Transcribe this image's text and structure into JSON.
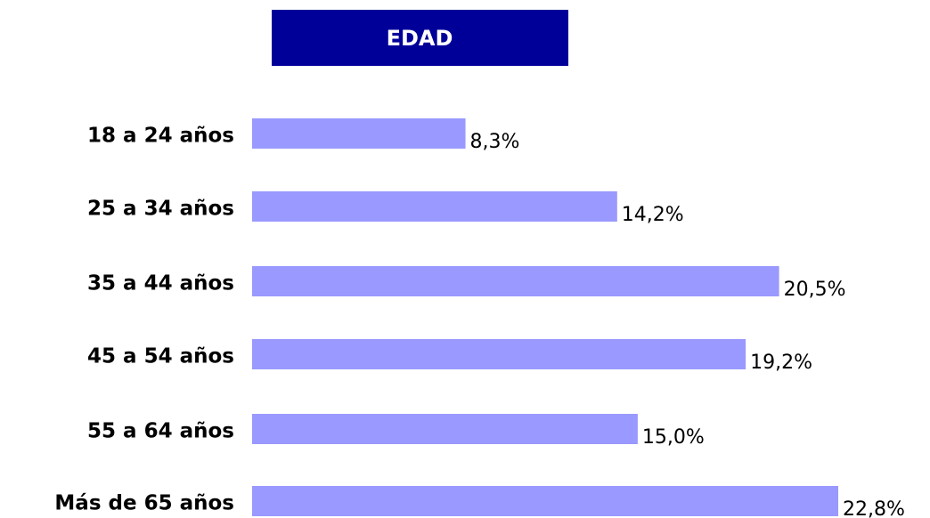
{
  "chart_data": {
    "type": "barh",
    "title": "EDAD",
    "categories": [
      "18 a 24 años",
      "25 a 34 años",
      "35 a 44 años",
      "45 a 54 años",
      "55 a 64 años",
      "Más de 65 años"
    ],
    "values": [
      8.3,
      14.2,
      20.5,
      19.2,
      15.0,
      22.8
    ],
    "value_labels": [
      "8,3%",
      "14,2%",
      "20,5%",
      "19,2%",
      "15,0%",
      "22,8%"
    ],
    "color": "#9999ff"
  }
}
